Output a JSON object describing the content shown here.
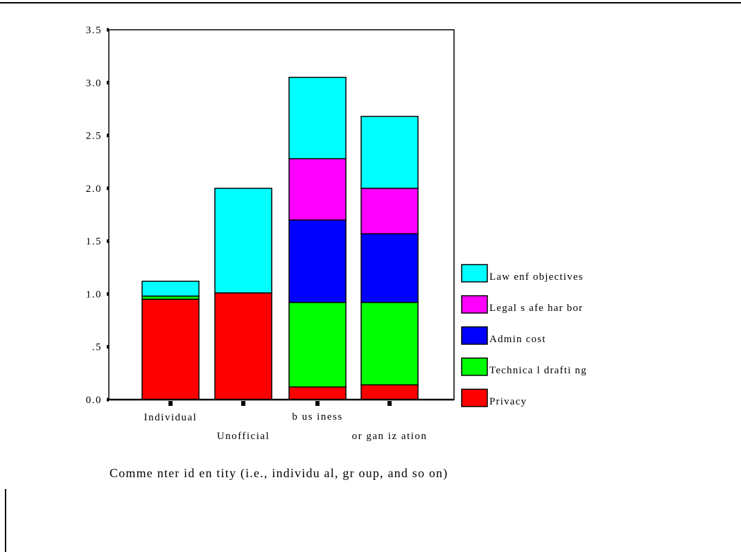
{
  "chart_data": {
    "type": "bar",
    "stacked": true,
    "categories": [
      "Individual",
      "Unofficial",
      "b us iness",
      "or gan iz ation"
    ],
    "series": [
      {
        "name": "Privacy",
        "color": "#ff0000",
        "values": [
          0.95,
          1.01,
          0.12,
          0.14
        ]
      },
      {
        "name": "Technical drafting",
        "color": "#00ff00",
        "values": [
          0.03,
          0.0,
          0.8,
          0.78
        ]
      },
      {
        "name": "Admin cost",
        "color": "#0000ff",
        "values": [
          0.0,
          0.0,
          0.78,
          0.65
        ]
      },
      {
        "name": "Legal safe harbor",
        "color": "#ff00ff",
        "values": [
          0.0,
          0.0,
          0.58,
          0.43
        ]
      },
      {
        "name": "Law enf objectives",
        "color": "#00ffff",
        "values": [
          0.14,
          0.99,
          0.77,
          0.68
        ]
      }
    ],
    "legend_labels": [
      "Law enf objectives",
      "Legal s afe har bor",
      "Admin cost",
      "Technica l drafti ng",
      "Privacy"
    ],
    "y_ticks": [
      "0.0",
      ".5",
      "1.0",
      "1.5",
      "2.0",
      "2.5",
      "3.0",
      "3.5"
    ],
    "ylim": [
      0,
      3.5
    ],
    "xlabel": "Comme nter id en tity (i.e., individu al, gr oup, and so on)",
    "ylabel": "",
    "title": "",
    "grid": false,
    "legend_position": "right"
  }
}
